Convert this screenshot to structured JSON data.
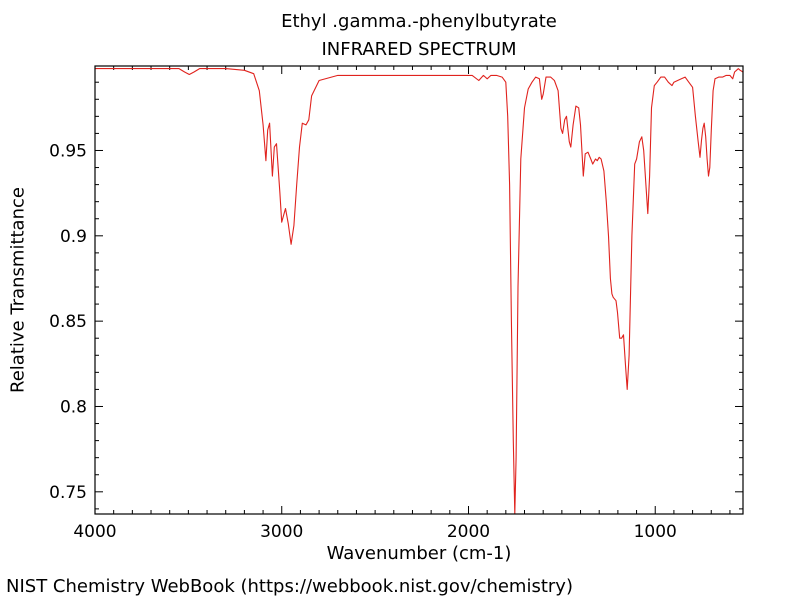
{
  "chart_data": {
    "type": "line",
    "title": "Ethyl .gamma.-phenylbutyrate",
    "subtitle": "INFRARED SPECTRUM",
    "xlabel": "Wavenumber (cm-1)",
    "ylabel": "Relative Transmittance",
    "xlim": [
      4000,
      530
    ],
    "ylim": [
      0.737,
      0.9995
    ],
    "x_reversed": true,
    "x_ticks": [
      4000,
      3000,
      2000,
      1000
    ],
    "x_tick_labels": [
      "4000",
      "3000",
      "2000",
      "1000"
    ],
    "y_ticks": [
      0.95,
      0.9,
      0.85,
      0.8,
      0.75
    ],
    "y_tick_labels": [
      "0.95",
      "0.9",
      "0.85",
      "0.8",
      "0.75"
    ],
    "grid": false,
    "line_color": "#e0231e",
    "series": [
      {
        "values": [
          [
            4000,
            0.998
          ],
          [
            3700,
            0.998
          ],
          [
            3550,
            0.998
          ],
          [
            3520,
            0.996
          ],
          [
            3495,
            0.9945
          ],
          [
            3470,
            0.996
          ],
          [
            3440,
            0.998
          ],
          [
            3300,
            0.998
          ],
          [
            3200,
            0.997
          ],
          [
            3150,
            0.995
          ],
          [
            3120,
            0.985
          ],
          [
            3100,
            0.965
          ],
          [
            3085,
            0.944
          ],
          [
            3075,
            0.962
          ],
          [
            3065,
            0.966
          ],
          [
            3050,
            0.935
          ],
          [
            3040,
            0.952
          ],
          [
            3028,
            0.954
          ],
          [
            3010,
            0.925
          ],
          [
            3000,
            0.908
          ],
          [
            2990,
            0.912
          ],
          [
            2980,
            0.916
          ],
          [
            2965,
            0.907
          ],
          [
            2950,
            0.895
          ],
          [
            2935,
            0.906
          ],
          [
            2920,
            0.93
          ],
          [
            2905,
            0.952
          ],
          [
            2890,
            0.966
          ],
          [
            2870,
            0.965
          ],
          [
            2855,
            0.968
          ],
          [
            2840,
            0.982
          ],
          [
            2800,
            0.991
          ],
          [
            2700,
            0.994
          ],
          [
            2500,
            0.994
          ],
          [
            2300,
            0.994
          ],
          [
            2100,
            0.994
          ],
          [
            1980,
            0.994
          ],
          [
            1945,
            0.991
          ],
          [
            1920,
            0.994
          ],
          [
            1900,
            0.992
          ],
          [
            1880,
            0.994
          ],
          [
            1850,
            0.994
          ],
          [
            1820,
            0.993
          ],
          [
            1800,
            0.99
          ],
          [
            1790,
            0.97
          ],
          [
            1780,
            0.93
          ],
          [
            1770,
            0.85
          ],
          [
            1760,
            0.78
          ],
          [
            1752,
            0.737
          ],
          [
            1745,
            0.77
          ],
          [
            1735,
            0.87
          ],
          [
            1720,
            0.945
          ],
          [
            1700,
            0.975
          ],
          [
            1680,
            0.986
          ],
          [
            1660,
            0.99
          ],
          [
            1640,
            0.993
          ],
          [
            1620,
            0.992
          ],
          [
            1608,
            0.98
          ],
          [
            1600,
            0.983
          ],
          [
            1585,
            0.993
          ],
          [
            1560,
            0.993
          ],
          [
            1540,
            0.991
          ],
          [
            1520,
            0.985
          ],
          [
            1505,
            0.963
          ],
          [
            1496,
            0.96
          ],
          [
            1485,
            0.968
          ],
          [
            1475,
            0.97
          ],
          [
            1460,
            0.955
          ],
          [
            1452,
            0.952
          ],
          [
            1440,
            0.965
          ],
          [
            1425,
            0.976
          ],
          [
            1410,
            0.975
          ],
          [
            1400,
            0.965
          ],
          [
            1385,
            0.935
          ],
          [
            1375,
            0.948
          ],
          [
            1360,
            0.949
          ],
          [
            1345,
            0.945
          ],
          [
            1335,
            0.942
          ],
          [
            1320,
            0.945
          ],
          [
            1310,
            0.944
          ],
          [
            1300,
            0.946
          ],
          [
            1290,
            0.945
          ],
          [
            1275,
            0.938
          ],
          [
            1262,
            0.92
          ],
          [
            1250,
            0.9
          ],
          [
            1240,
            0.875
          ],
          [
            1232,
            0.866
          ],
          [
            1225,
            0.864
          ],
          [
            1210,
            0.862
          ],
          [
            1202,
            0.855
          ],
          [
            1190,
            0.84
          ],
          [
            1180,
            0.84
          ],
          [
            1170,
            0.842
          ],
          [
            1160,
            0.825
          ],
          [
            1150,
            0.81
          ],
          [
            1140,
            0.83
          ],
          [
            1125,
            0.9
          ],
          [
            1110,
            0.942
          ],
          [
            1100,
            0.945
          ],
          [
            1085,
            0.955
          ],
          [
            1072,
            0.958
          ],
          [
            1062,
            0.95
          ],
          [
            1050,
            0.93
          ],
          [
            1040,
            0.913
          ],
          [
            1030,
            0.935
          ],
          [
            1020,
            0.975
          ],
          [
            1005,
            0.988
          ],
          [
            990,
            0.99
          ],
          [
            970,
            0.993
          ],
          [
            950,
            0.993
          ],
          [
            930,
            0.99
          ],
          [
            910,
            0.988
          ],
          [
            900,
            0.99
          ],
          [
            880,
            0.991
          ],
          [
            860,
            0.992
          ],
          [
            840,
            0.993
          ],
          [
            820,
            0.99
          ],
          [
            800,
            0.987
          ],
          [
            785,
            0.97
          ],
          [
            770,
            0.955
          ],
          [
            760,
            0.946
          ],
          [
            752,
            0.956
          ],
          [
            745,
            0.963
          ],
          [
            738,
            0.966
          ],
          [
            730,
            0.958
          ],
          [
            722,
            0.945
          ],
          [
            715,
            0.935
          ],
          [
            708,
            0.94
          ],
          [
            700,
            0.962
          ],
          [
            690,
            0.985
          ],
          [
            680,
            0.992
          ],
          [
            660,
            0.993
          ],
          [
            640,
            0.993
          ],
          [
            620,
            0.994
          ],
          [
            600,
            0.994
          ],
          [
            585,
            0.992
          ],
          [
            575,
            0.996
          ],
          [
            565,
            0.997
          ],
          [
            555,
            0.998
          ],
          [
            545,
            0.997
          ],
          [
            530,
            0.996
          ]
        ]
      }
    ]
  },
  "footer": "NIST Chemistry WebBook (https://webbook.nist.gov/chemistry)"
}
